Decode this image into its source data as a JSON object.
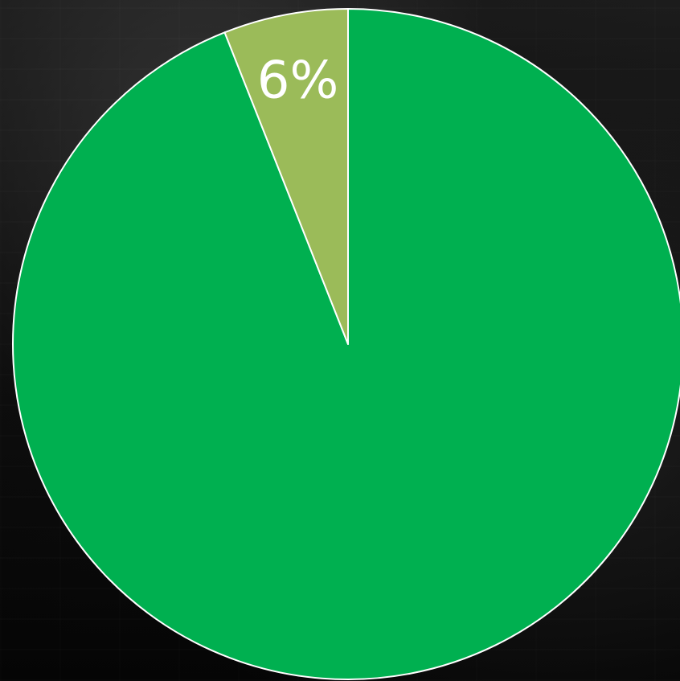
{
  "chart_data": {
    "type": "pie",
    "slices": [
      {
        "value": 94,
        "color": "#00b050",
        "label": ""
      },
      {
        "value": 6,
        "color": "#9bbb59",
        "label": "6%"
      }
    ],
    "start": "top",
    "direction": "clockwise"
  }
}
